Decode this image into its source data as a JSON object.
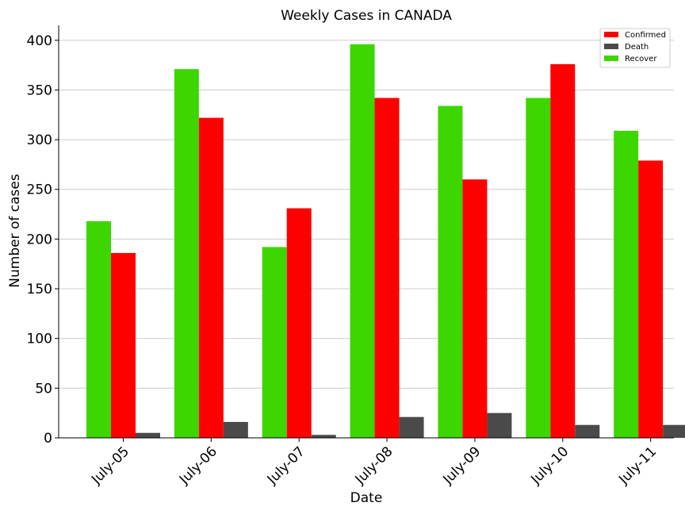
{
  "chart_data": {
    "type": "bar",
    "title": "Weekly Cases in CANADA",
    "xlabel": "Date",
    "ylabel": "Number of cases",
    "categories": [
      "July-05",
      "July-06",
      "July-07",
      "July-08",
      "July-09",
      "July-10",
      "July-11"
    ],
    "series": [
      {
        "name": "Recover",
        "color": "#3dd600",
        "values": [
          218,
          371,
          192,
          396,
          334,
          342,
          309
        ]
      },
      {
        "name": "Confirmed",
        "color": "#ff0000",
        "values": [
          186,
          322,
          231,
          342,
          260,
          376,
          279
        ]
      },
      {
        "name": "Death",
        "color": "#4a4a4a",
        "values": [
          5,
          16,
          3,
          21,
          25,
          13,
          13
        ]
      }
    ],
    "legend_order": [
      "Confirmed",
      "Death",
      "Recover"
    ],
    "ylim": [
      0,
      415
    ],
    "yticks": [
      0,
      50,
      100,
      150,
      200,
      250,
      300,
      350,
      400
    ],
    "grid": "horizontal",
    "legend_position": "top-right"
  }
}
